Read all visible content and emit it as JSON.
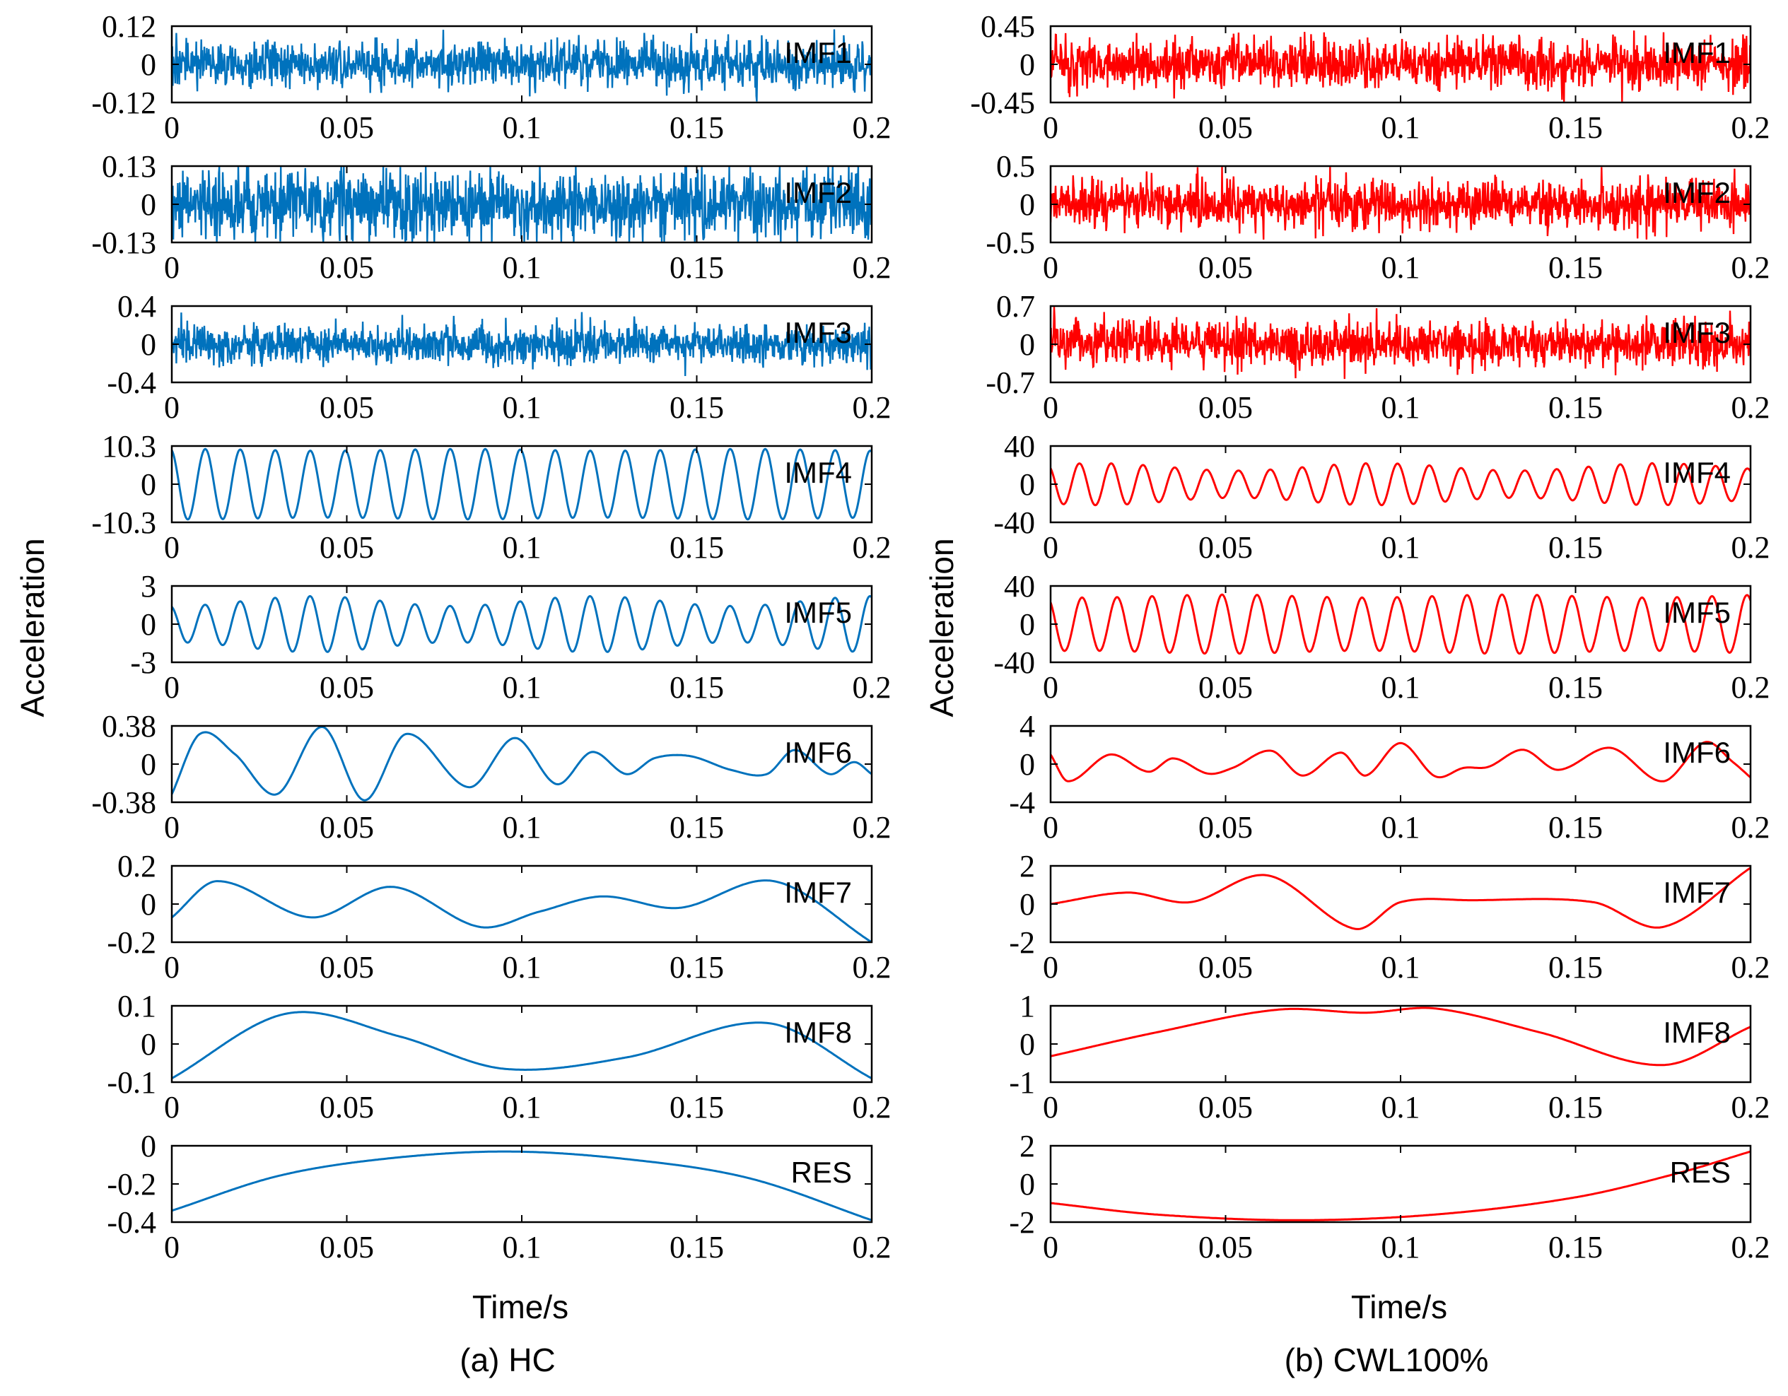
{
  "chart_data": [
    {
      "type": "line",
      "caption": "(a) HC",
      "xlabel": "Time/s",
      "ylabel": "Acceleration",
      "color": "#0072BD",
      "xlim": [
        0,
        0.2
      ],
      "xticks": [
        "0",
        "0.05",
        "0.1",
        "0.15",
        "0.2"
      ],
      "panels": [
        {
          "name": "IMF1",
          "ylim": [
            -0.12,
            0.12
          ],
          "yticks": [
            "0.12",
            "0",
            "-0.12"
          ],
          "kind": "noise",
          "amp": 0.035,
          "spike": 0.1
        },
        {
          "name": "IMF2",
          "ylim": [
            -0.13,
            0.13
          ],
          "yticks": [
            "0.13",
            "0",
            "-0.13"
          ],
          "kind": "noise",
          "amp": 0.06,
          "spike": 0.13
        },
        {
          "name": "IMF3",
          "ylim": [
            -0.4,
            0.4
          ],
          "yticks": [
            "0.4",
            "0",
            "-0.4"
          ],
          "kind": "noise",
          "amp": 0.1,
          "spike": 0.25
        },
        {
          "name": "IMF4",
          "ylim": [
            -10.3,
            10.3
          ],
          "yticks": [
            "10.3",
            "0",
            "-10.3"
          ],
          "kind": "osc",
          "cycles": 20,
          "amp": 9.5,
          "mod": 0.05
        },
        {
          "name": "IMF5",
          "ylim": [
            -3,
            3
          ],
          "yticks": [
            "3",
            "0",
            "-3"
          ],
          "kind": "osc",
          "cycles": 20,
          "amp": 2.2,
          "mod": 0.35
        },
        {
          "name": "IMF6",
          "ylim": [
            -0.38,
            0.38
          ],
          "yticks": [
            "0.38",
            "0",
            "-0.38"
          ],
          "kind": "pts",
          "x": [
            0,
            0.008,
            0.018,
            0.03,
            0.043,
            0.055,
            0.067,
            0.085,
            0.098,
            0.11,
            0.12,
            0.13,
            0.138,
            0.148,
            0.16,
            0.17,
            0.178,
            0.188,
            0.195,
            0.2
          ],
          "y": [
            -0.3,
            0.3,
            0.1,
            -0.3,
            0.37,
            -0.36,
            0.3,
            -0.23,
            0.26,
            -0.2,
            0.12,
            -0.1,
            0.06,
            0.08,
            -0.06,
            -0.1,
            0.14,
            -0.1,
            0.02,
            -0.1
          ]
        },
        {
          "name": "IMF7",
          "ylim": [
            -0.2,
            0.2
          ],
          "yticks": [
            "0.2",
            "0",
            "-0.2"
          ],
          "kind": "pts",
          "x": [
            0,
            0.013,
            0.04,
            0.063,
            0.088,
            0.105,
            0.123,
            0.145,
            0.172,
            0.2
          ],
          "y": [
            -0.07,
            0.12,
            -0.07,
            0.09,
            -0.12,
            -0.04,
            0.04,
            -0.02,
            0.12,
            -0.2
          ]
        },
        {
          "name": "IMF8",
          "ylim": [
            -0.1,
            0.1
          ],
          "yticks": [
            "0.1",
            "0",
            "-0.1"
          ],
          "kind": "pts",
          "x": [
            0,
            0.033,
            0.065,
            0.095,
            0.13,
            0.17,
            0.2
          ],
          "y": [
            -0.09,
            0.08,
            0.02,
            -0.065,
            -0.035,
            0.055,
            -0.09
          ]
        },
        {
          "name": "RES",
          "ylim": [
            -0.4,
            0
          ],
          "yticks": [
            "0",
            "-0.2",
            "-0.4"
          ],
          "kind": "pts",
          "x": [
            0,
            0.03,
            0.06,
            0.095,
            0.13,
            0.165,
            0.2
          ],
          "y": [
            -0.34,
            -0.16,
            -0.07,
            -0.03,
            -0.07,
            -0.17,
            -0.39
          ]
        }
      ]
    },
    {
      "type": "line",
      "caption": "(b) CWL100%",
      "xlabel": "Time/s",
      "ylabel": "Acceleration",
      "color": "#FF0000",
      "xlim": [
        0,
        0.2
      ],
      "xticks": [
        "0",
        "0.05",
        "0.1",
        "0.15",
        "0.2"
      ],
      "panels": [
        {
          "name": "IMF1",
          "ylim": [
            -0.45,
            0.45
          ],
          "yticks": [
            "0.45",
            "0",
            "-0.45"
          ],
          "kind": "noise",
          "amp": 0.14,
          "spike": 0.4
        },
        {
          "name": "IMF2",
          "ylim": [
            -0.5,
            0.5
          ],
          "yticks": [
            "0.5",
            "0",
            "-0.5"
          ],
          "kind": "noise",
          "amp": 0.16,
          "spike": 0.45
        },
        {
          "name": "IMF3",
          "ylim": [
            -0.7,
            0.7
          ],
          "yticks": [
            "0.7",
            "0",
            "-0.7"
          ],
          "kind": "noise",
          "amp": 0.2,
          "spike": 0.55
        },
        {
          "name": "IMF4",
          "ylim": [
            -40,
            40
          ],
          "yticks": [
            "40",
            "0",
            "-40"
          ],
          "kind": "osc",
          "cycles": 22,
          "amp": 22,
          "mod": 0.35
        },
        {
          "name": "IMF5",
          "ylim": [
            -40,
            40
          ],
          "yticks": [
            "40",
            "0",
            "-40"
          ],
          "kind": "osc",
          "cycles": 20,
          "amp": 31,
          "mod": 0.1
        },
        {
          "name": "IMF6",
          "ylim": [
            -4,
            4
          ],
          "yticks": [
            "4",
            "0",
            "-4"
          ],
          "kind": "pts",
          "x": [
            0,
            0.005,
            0.017,
            0.028,
            0.035,
            0.045,
            0.052,
            0.063,
            0.072,
            0.083,
            0.09,
            0.1,
            0.11,
            0.118,
            0.125,
            0.135,
            0.145,
            0.16,
            0.175,
            0.187,
            0.195,
            0.2
          ],
          "y": [
            1,
            -1.8,
            1,
            -0.8,
            0.6,
            -1,
            -0.4,
            1.4,
            -1.2,
            1.2,
            -1.2,
            2.2,
            -1.3,
            -0.4,
            -0.3,
            1.5,
            -0.6,
            1.7,
            -1.8,
            2.3,
            0.2,
            -1.4
          ]
        },
        {
          "name": "IMF7",
          "ylim": [
            -2,
            2
          ],
          "yticks": [
            "2",
            "0",
            "-2"
          ],
          "kind": "pts",
          "x": [
            0,
            0.022,
            0.04,
            0.062,
            0.087,
            0.1,
            0.12,
            0.155,
            0.175,
            0.2
          ],
          "y": [
            0,
            0.6,
            0.1,
            1.5,
            -1.3,
            0.1,
            0.2,
            0.1,
            -1.2,
            1.9
          ]
        },
        {
          "name": "IMF8",
          "ylim": [
            -1,
            1
          ],
          "yticks": [
            "1",
            "0",
            "-1"
          ],
          "kind": "pts",
          "x": [
            0,
            0.03,
            0.065,
            0.09,
            0.11,
            0.14,
            0.175,
            0.2
          ],
          "y": [
            -0.32,
            0.3,
            0.9,
            0.82,
            0.93,
            0.3,
            -0.55,
            0.45
          ]
        },
        {
          "name": "RES",
          "ylim": [
            -2,
            2
          ],
          "yticks": [
            "2",
            "0",
            "-2"
          ],
          "kind": "pts",
          "x": [
            0,
            0.03,
            0.07,
            0.11,
            0.15,
            0.18,
            0.2
          ],
          "y": [
            -1,
            -1.6,
            -1.9,
            -1.6,
            -0.7,
            0.6,
            1.7
          ]
        }
      ]
    }
  ]
}
